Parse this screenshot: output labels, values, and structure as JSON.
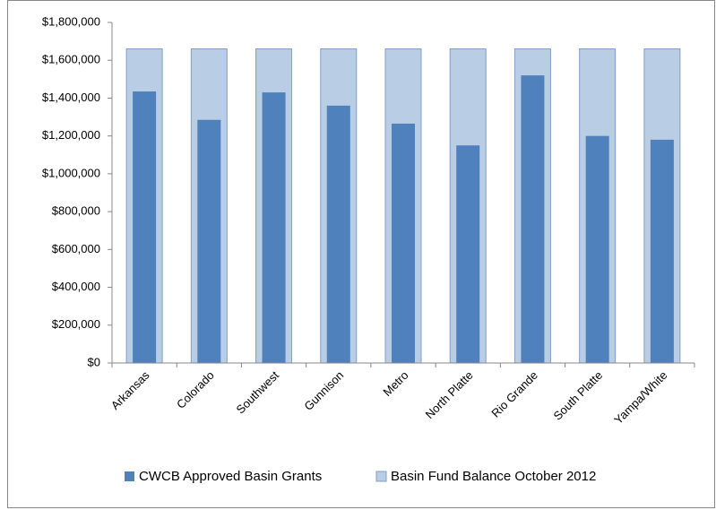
{
  "chart_data": {
    "type": "bar",
    "overlap": true,
    "categories": [
      "Arkansas",
      "Colorado",
      "Southwest",
      "Gunnison",
      "Metro",
      "North Platte",
      "Rio Grande",
      "South Platte",
      "Yampa/White"
    ],
    "series": [
      {
        "name": "CWCB Approved Basin Grants",
        "color": "#4f81bd",
        "values": [
          1435000,
          1285000,
          1430000,
          1360000,
          1265000,
          1150000,
          1520000,
          1200000,
          1180000
        ]
      },
      {
        "name": "Basin Fund Balance October 2012",
        "color": "#b9cde5",
        "values": [
          1660000,
          1660000,
          1660000,
          1660000,
          1660000,
          1660000,
          1660000,
          1660000,
          1660000
        ]
      }
    ],
    "ylim": [
      0,
      1800000
    ],
    "yticks": [
      {
        "value": 0,
        "label": "$0"
      },
      {
        "value": 200000,
        "label": "$200,000"
      },
      {
        "value": 400000,
        "label": "$400,000"
      },
      {
        "value": 600000,
        "label": "$600,000"
      },
      {
        "value": 800000,
        "label": "$800,000"
      },
      {
        "value": 1000000,
        "label": "$1,000,000"
      },
      {
        "value": 1200000,
        "label": "$1,200,000"
      },
      {
        "value": 1400000,
        "label": "$1,400,000"
      },
      {
        "value": 1600000,
        "label": "$1,600,000"
      },
      {
        "value": 1800000,
        "label": "$1,800,000"
      }
    ],
    "grid": false,
    "legend": "bottom"
  }
}
